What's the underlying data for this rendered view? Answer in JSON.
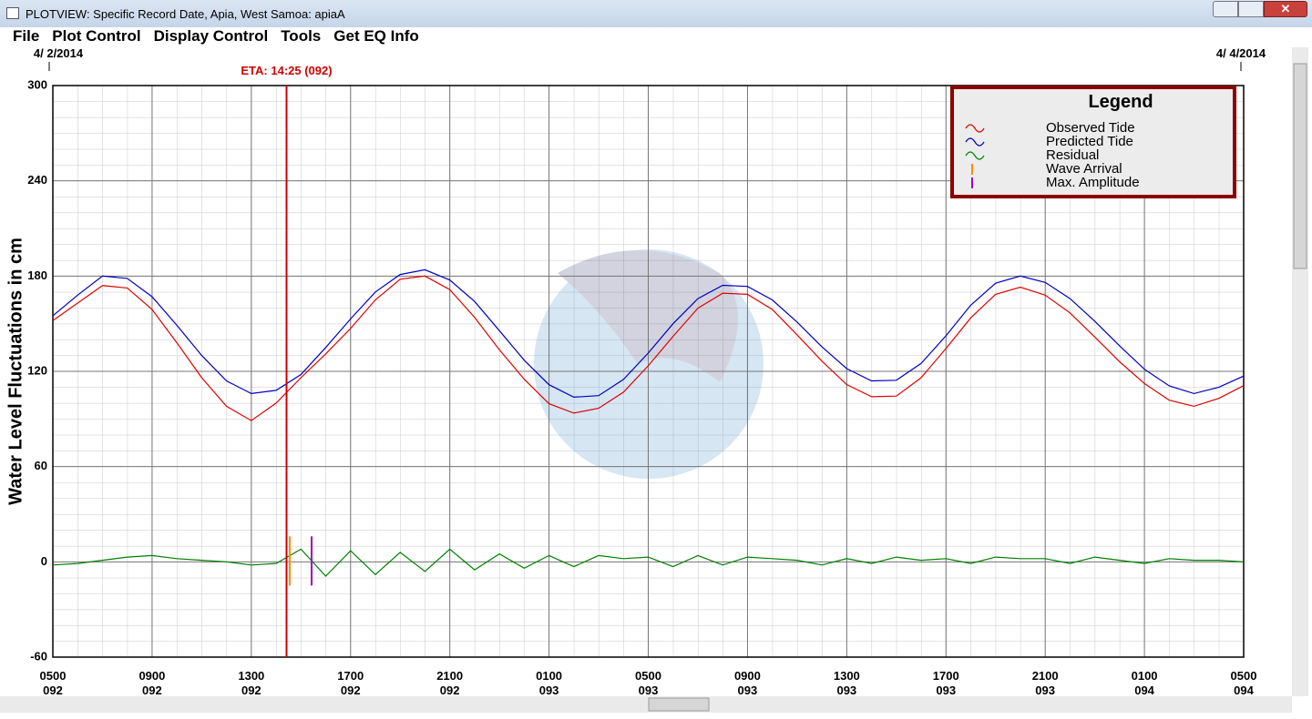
{
  "window": {
    "title": "PLOTVIEW: Specific Record Date, Apia, West Samoa: apiaA",
    "menu": [
      "File",
      "Plot Control",
      "Display Control",
      "Tools",
      "Get EQ Info"
    ]
  },
  "chart_data": {
    "type": "line",
    "y_label": "Water Level Fluctuations in cm",
    "start_date": "4/ 2/2014",
    "end_date": "4/ 4/2014",
    "legend_title": "Legend",
    "legend": "upper right",
    "grid": true,
    "x": [
      0,
      1,
      2,
      3,
      4,
      5,
      6,
      7,
      8,
      9,
      10,
      11,
      12,
      13,
      14,
      15,
      16,
      17,
      18,
      19,
      20,
      21,
      22,
      23,
      24,
      25,
      26,
      27,
      28,
      29,
      30,
      31,
      32,
      33,
      34,
      35,
      36,
      37,
      38,
      39,
      40,
      41,
      42,
      43,
      44,
      45,
      46,
      47,
      48
    ],
    "xlim": [
      0,
      48
    ],
    "xticks": [
      {
        "value": 0,
        "label": "0500\n092"
      },
      {
        "value": 4,
        "label": "0900\n092"
      },
      {
        "value": 8,
        "label": "1300\n092"
      },
      {
        "value": 12,
        "label": "1700\n092"
      },
      {
        "value": 16,
        "label": "2100\n092"
      },
      {
        "value": 20,
        "label": "0100\n093"
      },
      {
        "value": 24,
        "label": "0500\n093"
      },
      {
        "value": 28,
        "label": "0900\n093"
      },
      {
        "value": 32,
        "label": "1300\n093"
      },
      {
        "value": 36,
        "label": "1700\n093"
      },
      {
        "value": 40,
        "label": "2100\n093"
      },
      {
        "value": 44,
        "label": "0100\n094"
      },
      {
        "value": 48,
        "label": "0500\n094"
      }
    ],
    "ylim": [
      -60,
      300
    ],
    "yticks": [
      -60,
      0,
      60,
      120,
      180,
      240,
      300
    ],
    "series": [
      {
        "name": "Observed Tide",
        "color": "#e00000",
        "values": [
          152,
          163,
          174,
          172.5,
          159,
          138,
          116,
          98,
          89,
          100,
          116,
          131,
          147,
          165,
          178,
          180,
          171.5,
          154,
          133.6,
          115,
          99.6,
          93.7,
          96.7,
          106.9,
          123.5,
          142,
          159.8,
          169.2,
          168.5,
          159,
          143,
          126.4,
          111.7,
          104,
          104.4,
          116,
          134.4,
          153.7,
          168.5,
          173,
          168,
          156.8,
          141.6,
          126,
          112.3,
          101.8,
          98,
          103,
          111
        ]
      },
      {
        "name": "Predicted Tide",
        "color": "#0000c0",
        "values": [
          155,
          168,
          180,
          178.5,
          167,
          149,
          130,
          114,
          106,
          108,
          118,
          135,
          153,
          170,
          181,
          184,
          177.5,
          164,
          145.6,
          127,
          111.6,
          103.7,
          104.7,
          114.9,
          131.5,
          150,
          165.8,
          174.2,
          173.5,
          165,
          151,
          135.4,
          121.7,
          114,
          114.4,
          125,
          142.4,
          161.7,
          175.5,
          180,
          176,
          165.8,
          151.6,
          136,
          121.3,
          110.8,
          106,
          110,
          117
        ]
      },
      {
        "name": "Residual",
        "color": "#008000",
        "values": [
          -2,
          -1,
          1,
          3,
          4,
          2,
          1,
          0,
          -2,
          -1,
          8,
          -9,
          7,
          -8,
          6,
          -6,
          8,
          -5,
          5,
          -4,
          4,
          -3,
          4,
          2,
          3,
          -3,
          4,
          -2,
          3,
          2,
          1,
          -2,
          2,
          -1,
          3,
          1,
          2,
          -1,
          3,
          2,
          2,
          -1,
          3,
          1,
          -1,
          2,
          1,
          1,
          0
        ]
      }
    ],
    "markers": [
      {
        "name": "Wave Arrival",
        "color": "#ff8c00",
        "x": 9.55
      },
      {
        "name": "Max. Amplitude",
        "color": "#a000c0",
        "x": 10.43
      }
    ],
    "eta": {
      "label": "ETA: 14:25 (092)",
      "x": 9.42,
      "color": "#d00000"
    }
  }
}
